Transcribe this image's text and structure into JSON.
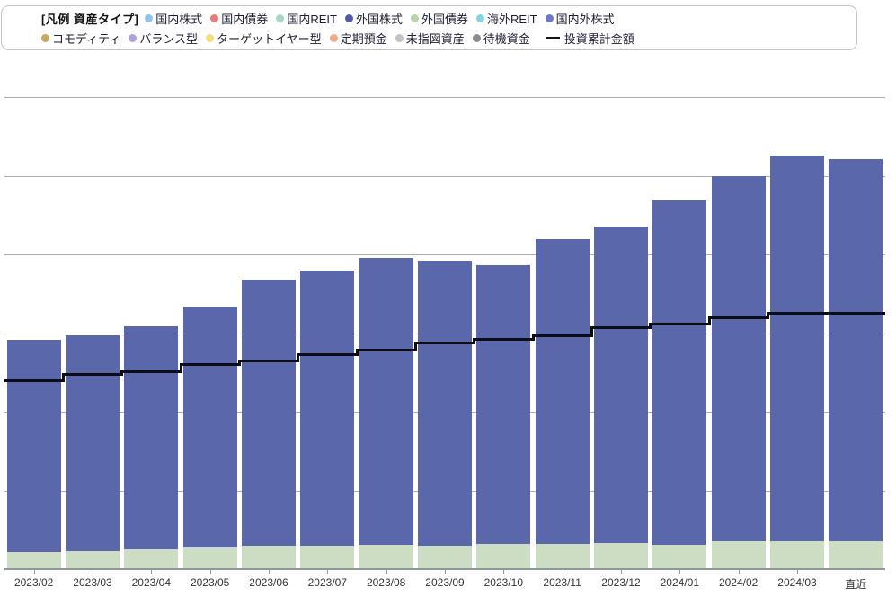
{
  "legend": {
    "title": "[凡例 資産タイプ]",
    "rows": [
      [
        {
          "label": "国内株式",
          "color": "#92c1ea",
          "marker": "dot"
        },
        {
          "label": "国内債券",
          "color": "#e97c76",
          "marker": "dot"
        },
        {
          "label": "国内REIT",
          "color": "#a9d8c5",
          "marker": "dot"
        },
        {
          "label": "外国株式",
          "color": "#4d5ba8",
          "marker": "dot"
        },
        {
          "label": "外国債券",
          "color": "#b7d5ad",
          "marker": "dot"
        },
        {
          "label": "海外REIT",
          "color": "#85d5da",
          "marker": "dot"
        },
        {
          "label": "国内外株式",
          "color": "#6b7ac6",
          "marker": "dot"
        }
      ],
      [
        {
          "label": "コモディティ",
          "color": "#c3aa62",
          "marker": "dot"
        },
        {
          "label": "バランス型",
          "color": "#b2a0d9",
          "marker": "dot"
        },
        {
          "label": "ターゲットイヤー型",
          "color": "#f1df7d",
          "marker": "dot"
        },
        {
          "label": "定期預金",
          "color": "#f2a987",
          "marker": "dot"
        },
        {
          "label": "未指図資産",
          "color": "#c2c2c2",
          "marker": "dot"
        },
        {
          "label": "待機資金",
          "color": "#8b8b8b",
          "marker": "dot"
        },
        {
          "label": "投資累計金額",
          "color": "#16161f",
          "marker": "line"
        }
      ]
    ]
  },
  "chart_data": {
    "type": "bar",
    "subtype": "stacked-bars-with-step-line-overlay",
    "title": "",
    "xlabel": "",
    "ylabel": "",
    "y_axis_labels_visible": false,
    "units": "gridline intervals (no numeric y-axis labels shown; 1.0 = one gridline spacing)",
    "ylim": [
      0,
      6
    ],
    "grid": true,
    "legend_position": "top",
    "categories": [
      "2023/02",
      "2023/03",
      "2023/04",
      "2023/05",
      "2023/06",
      "2023/07",
      "2023/08",
      "2023/09",
      "2023/10",
      "2023/11",
      "2023/12",
      "2024/01",
      "2024/02",
      "2024/03",
      "直近"
    ],
    "series": [
      {
        "name": "外国債券",
        "color": "#cdddc4",
        "values": [
          0.22,
          0.23,
          0.25,
          0.28,
          0.3,
          0.3,
          0.31,
          0.3,
          0.32,
          0.32,
          0.33,
          0.31,
          0.36,
          0.36,
          0.36
        ]
      },
      {
        "name": "外国株式",
        "color": "#5a67ab",
        "values": [
          2.7,
          2.74,
          2.84,
          3.06,
          3.38,
          3.49,
          3.64,
          3.62,
          3.54,
          3.88,
          4.02,
          4.38,
          4.63,
          4.9,
          4.85
        ]
      }
    ],
    "bar_totals": [
      2.92,
      2.97,
      3.09,
      3.34,
      3.68,
      3.79,
      3.95,
      3.92,
      3.86,
      4.2,
      4.35,
      4.69,
      4.99,
      5.26,
      5.21
    ],
    "line_series": {
      "name": "投資累計金額",
      "color": "#0c0c16",
      "values": [
        2.39,
        2.47,
        2.51,
        2.6,
        2.65,
        2.73,
        2.78,
        2.87,
        2.92,
        2.97,
        3.07,
        3.11,
        3.19,
        3.25,
        3.25
      ]
    }
  }
}
